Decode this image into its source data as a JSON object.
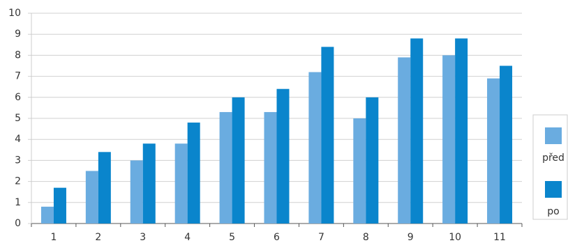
{
  "chart_data": {
    "type": "bar",
    "categories": [
      "1",
      "2",
      "3",
      "4",
      "5",
      "6",
      "7",
      "8",
      "9",
      "10",
      "11"
    ],
    "series": [
      {
        "name": "před",
        "color": "#6aace0",
        "values": [
          0.8,
          2.5,
          3.0,
          3.8,
          5.3,
          5.3,
          7.2,
          5.0,
          7.9,
          8.0,
          6.9
        ]
      },
      {
        "name": "po",
        "color": "#0a85cc",
        "values": [
          1.7,
          3.4,
          3.8,
          4.8,
          6.0,
          6.4,
          8.4,
          6.0,
          8.8,
          8.8,
          7.5
        ]
      }
    ],
    "ylim": [
      0,
      10
    ],
    "yticks": [
      0,
      1,
      2,
      3,
      4,
      5,
      6,
      7,
      8,
      9,
      10
    ],
    "grid": true,
    "legend": "right"
  }
}
